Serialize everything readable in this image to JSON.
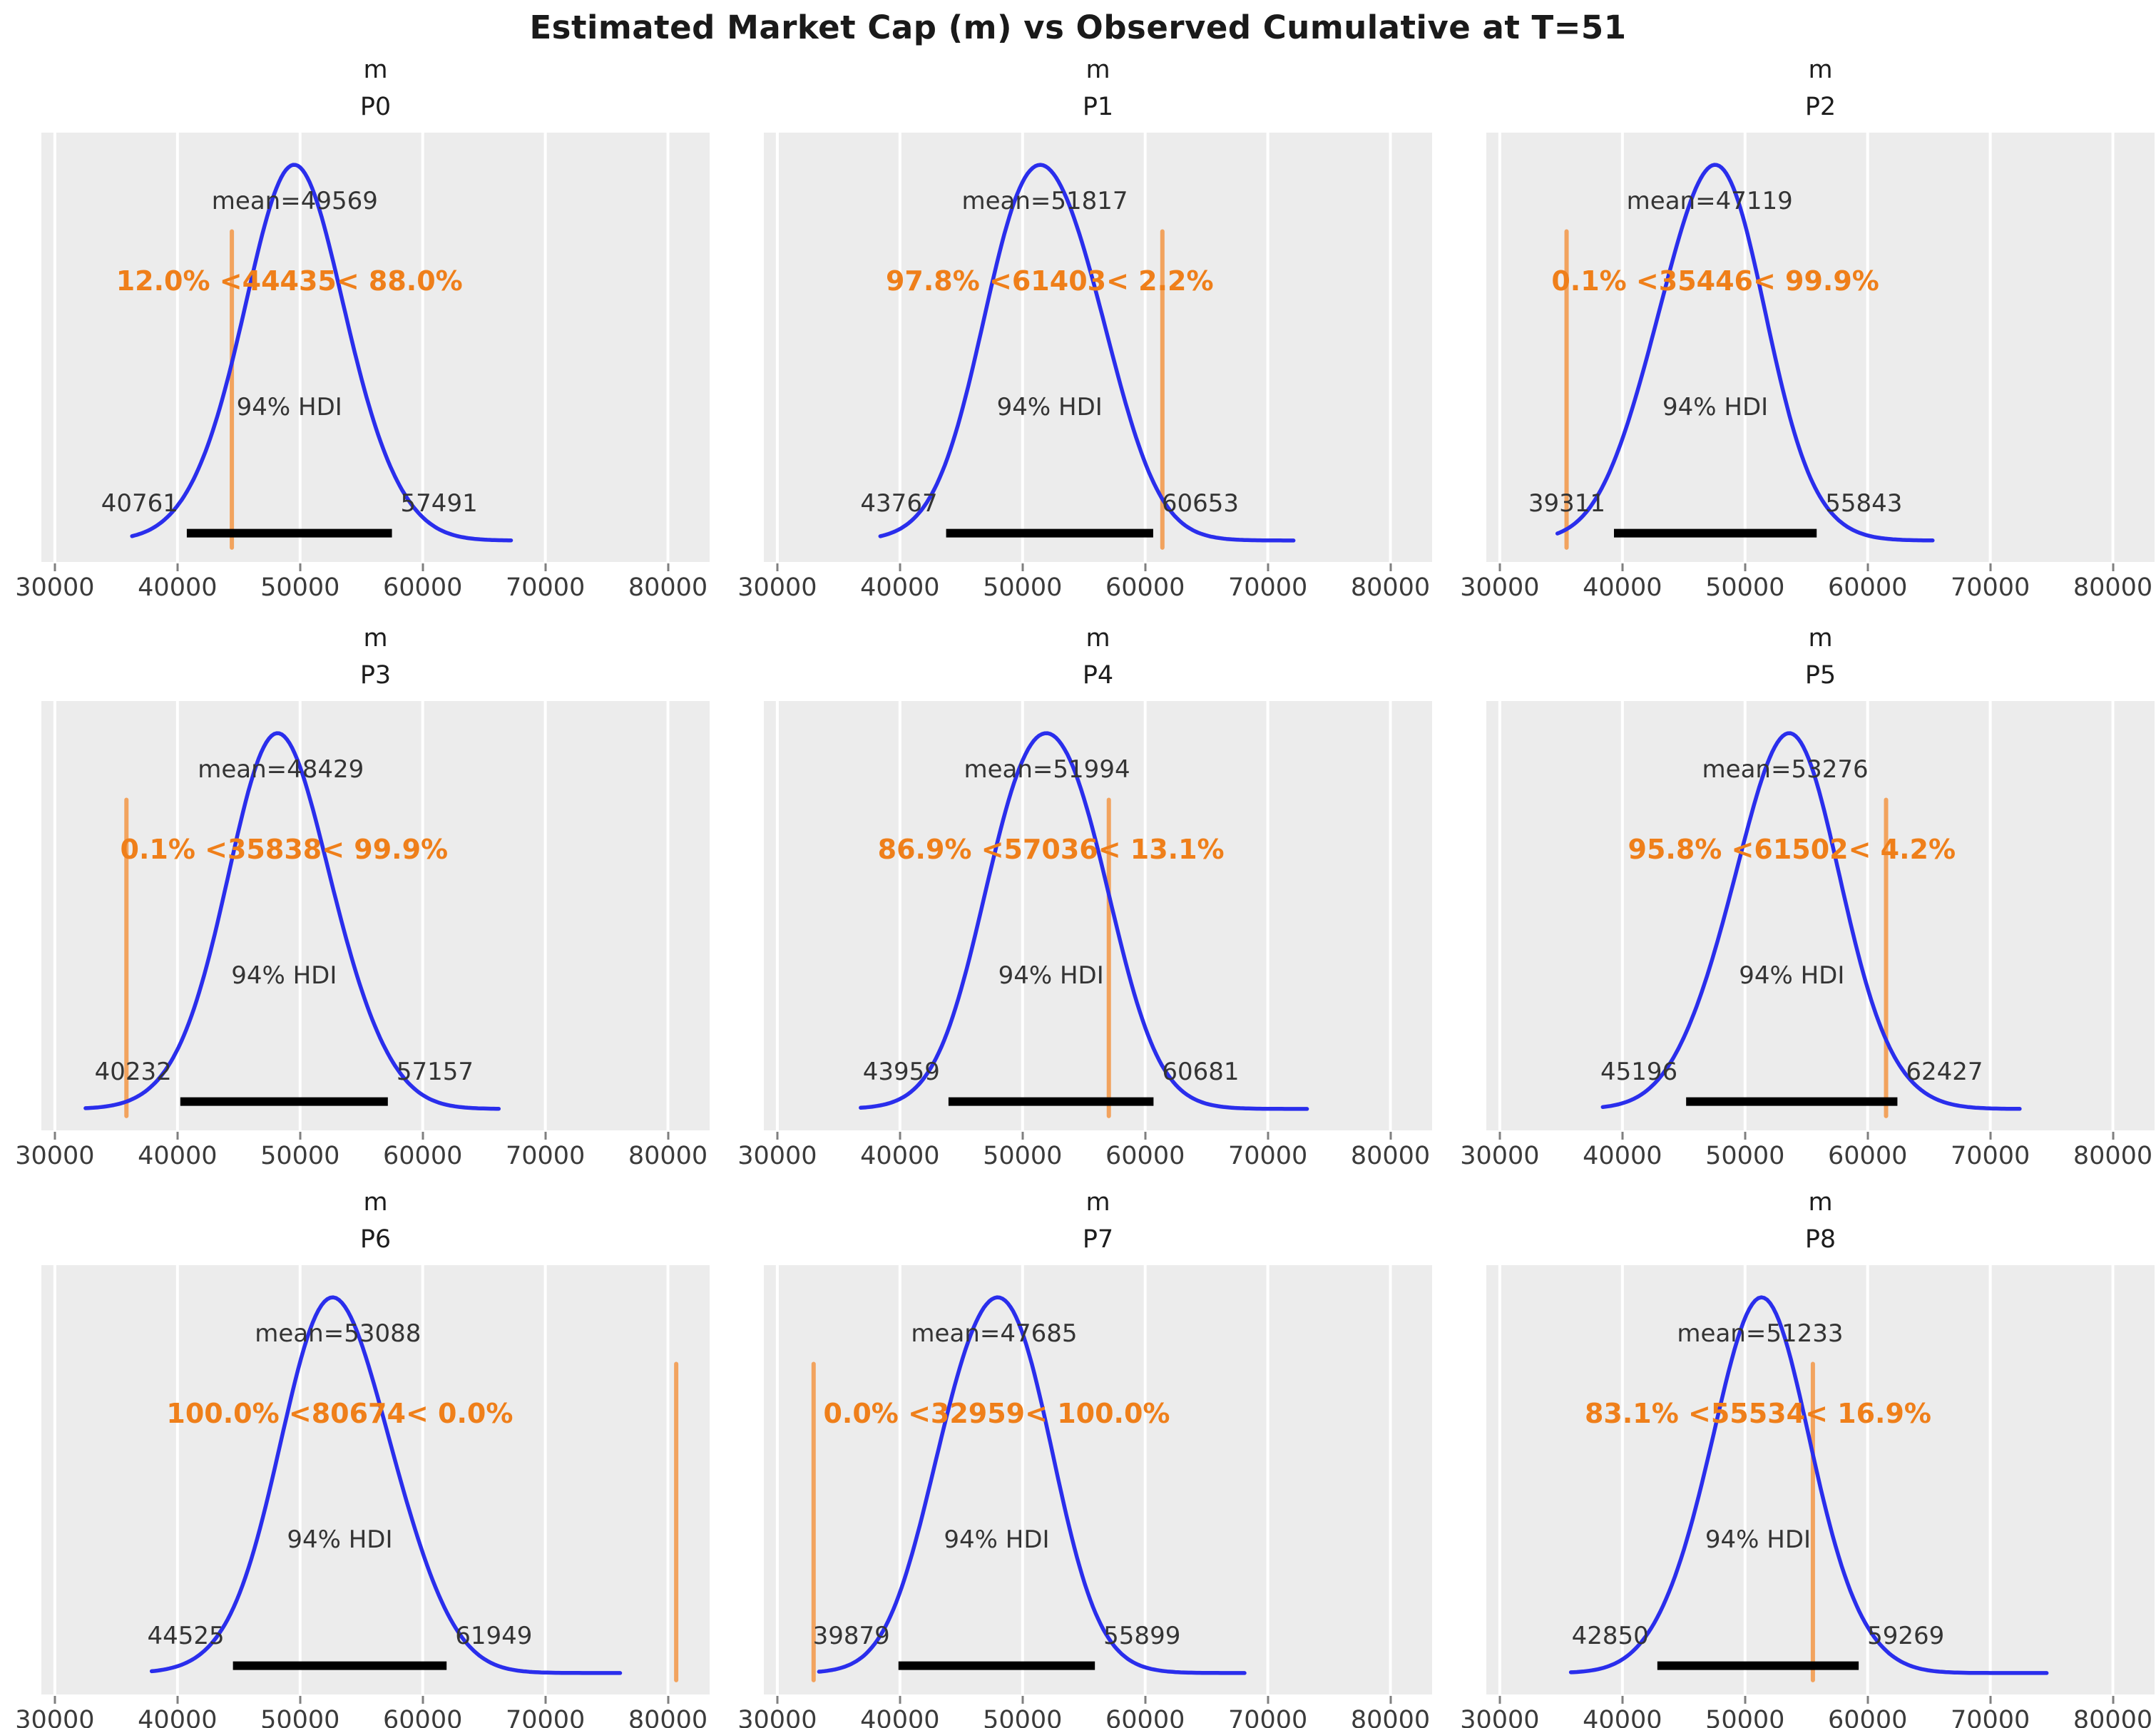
{
  "figure": {
    "title": "Estimated Market Cap (m) vs Observed Cumulative at T=51"
  },
  "style": {
    "panel_bg": "#ececec",
    "gridline": "#ffffff",
    "kde_color": "#2a2eec",
    "ref_line_color": "#f2a35e",
    "ref_text_color": "#ef7f1a",
    "hdi_bar_color": "#000000",
    "text_color": "#343434"
  },
  "chart_data": {
    "type": "kde",
    "title": "Estimated Market Cap (m) vs Observed Cumulative at T=51",
    "grid": "on",
    "xlim": [
      28900,
      83400
    ],
    "tick_values": [
      30000,
      40000,
      50000,
      60000,
      70000,
      80000
    ],
    "tick_labels": [
      "30000",
      "40000",
      "50000",
      "60000",
      "70000",
      "80000"
    ],
    "hdi_prob_label": "94% HDI",
    "panels": [
      {
        "name": "P0",
        "var_label": "m",
        "mean": 49569,
        "mean_label": "mean=49569",
        "ref_val": 44435,
        "pct_below": 12.0,
        "pct_above": 88.0,
        "ref_label": "12.0% <44435< 88.0%",
        "hdi_lo": 40761,
        "hdi_hi": 57491,
        "hdi_lo_label": "40761",
        "hdi_hi_label": "57491",
        "hdi_label": "94% HDI",
        "curve_min": 36300,
        "curve_max": 67200
      },
      {
        "name": "P1",
        "var_label": "m",
        "mean": 51817,
        "mean_label": "mean=51817",
        "ref_val": 61403,
        "pct_below": 97.8,
        "pct_above": 2.2,
        "ref_label": "97.8% <61403< 2.2%",
        "hdi_lo": 43767,
        "hdi_hi": 60653,
        "hdi_lo_label": "43767",
        "hdi_hi_label": "60653",
        "hdi_label": "94% HDI",
        "curve_min": 38400,
        "curve_max": 72100
      },
      {
        "name": "P2",
        "var_label": "m",
        "mean": 47119,
        "mean_label": "mean=47119",
        "ref_val": 35446,
        "pct_below": 0.1,
        "pct_above": 99.9,
        "ref_label": "0.1% <35446< 99.9%",
        "hdi_lo": 39311,
        "hdi_hi": 55843,
        "hdi_lo_label": "39311",
        "hdi_hi_label": "55843",
        "hdi_label": "94% HDI",
        "curve_min": 34700,
        "curve_max": 65300
      },
      {
        "name": "P3",
        "var_label": "m",
        "mean": 48429,
        "mean_label": "mean=48429",
        "ref_val": 35838,
        "pct_below": 0.1,
        "pct_above": 99.9,
        "ref_label": "0.1% <35838< 99.9%",
        "hdi_lo": 40232,
        "hdi_hi": 57157,
        "hdi_lo_label": "40232",
        "hdi_hi_label": "57157",
        "hdi_label": "94% HDI",
        "curve_min": 32500,
        "curve_max": 66200
      },
      {
        "name": "P4",
        "var_label": "m",
        "mean": 51994,
        "mean_label": "mean=51994",
        "ref_val": 57036,
        "pct_below": 86.9,
        "pct_above": 13.1,
        "ref_label": "86.9% <57036< 13.1%",
        "hdi_lo": 43959,
        "hdi_hi": 60681,
        "hdi_lo_label": "43959",
        "hdi_hi_label": "60681",
        "hdi_label": "94% HDI",
        "curve_min": 36800,
        "curve_max": 73200
      },
      {
        "name": "P5",
        "var_label": "m",
        "mean": 53276,
        "mean_label": "mean=53276",
        "ref_val": 61502,
        "pct_below": 95.8,
        "pct_above": 4.2,
        "ref_label": "95.8% <61502< 4.2%",
        "hdi_lo": 45196,
        "hdi_hi": 62427,
        "hdi_lo_label": "45196",
        "hdi_hi_label": "62427",
        "hdi_label": "94% HDI",
        "curve_min": 38400,
        "curve_max": 72400
      },
      {
        "name": "P6",
        "var_label": "m",
        "mean": 53088,
        "mean_label": "mean=53088",
        "ref_val": 80674,
        "pct_below": 100.0,
        "pct_above": 0.0,
        "ref_label": "100.0% <80674< 0.0%",
        "hdi_lo": 44525,
        "hdi_hi": 61949,
        "hdi_lo_label": "44525",
        "hdi_hi_label": "61949",
        "hdi_label": "94% HDI",
        "curve_min": 37900,
        "curve_max": 76100
      },
      {
        "name": "P7",
        "var_label": "m",
        "mean": 47685,
        "mean_label": "mean=47685",
        "ref_val": 32959,
        "pct_below": 0.0,
        "pct_above": 100.0,
        "ref_label": "0.0% <32959< 100.0%",
        "hdi_lo": 39879,
        "hdi_hi": 55899,
        "hdi_lo_label": "39879",
        "hdi_hi_label": "55899",
        "hdi_label": "94% HDI",
        "curve_min": 33400,
        "curve_max": 68100
      },
      {
        "name": "P8",
        "var_label": "m",
        "mean": 51233,
        "mean_label": "mean=51233",
        "ref_val": 55534,
        "pct_below": 83.1,
        "pct_above": 16.9,
        "ref_label": "83.1% <55534< 16.9%",
        "hdi_lo": 42850,
        "hdi_hi": 59269,
        "hdi_lo_label": "42850",
        "hdi_hi_label": "59269",
        "hdi_label": "94% HDI",
        "curve_min": 35800,
        "curve_max": 74600
      }
    ]
  }
}
